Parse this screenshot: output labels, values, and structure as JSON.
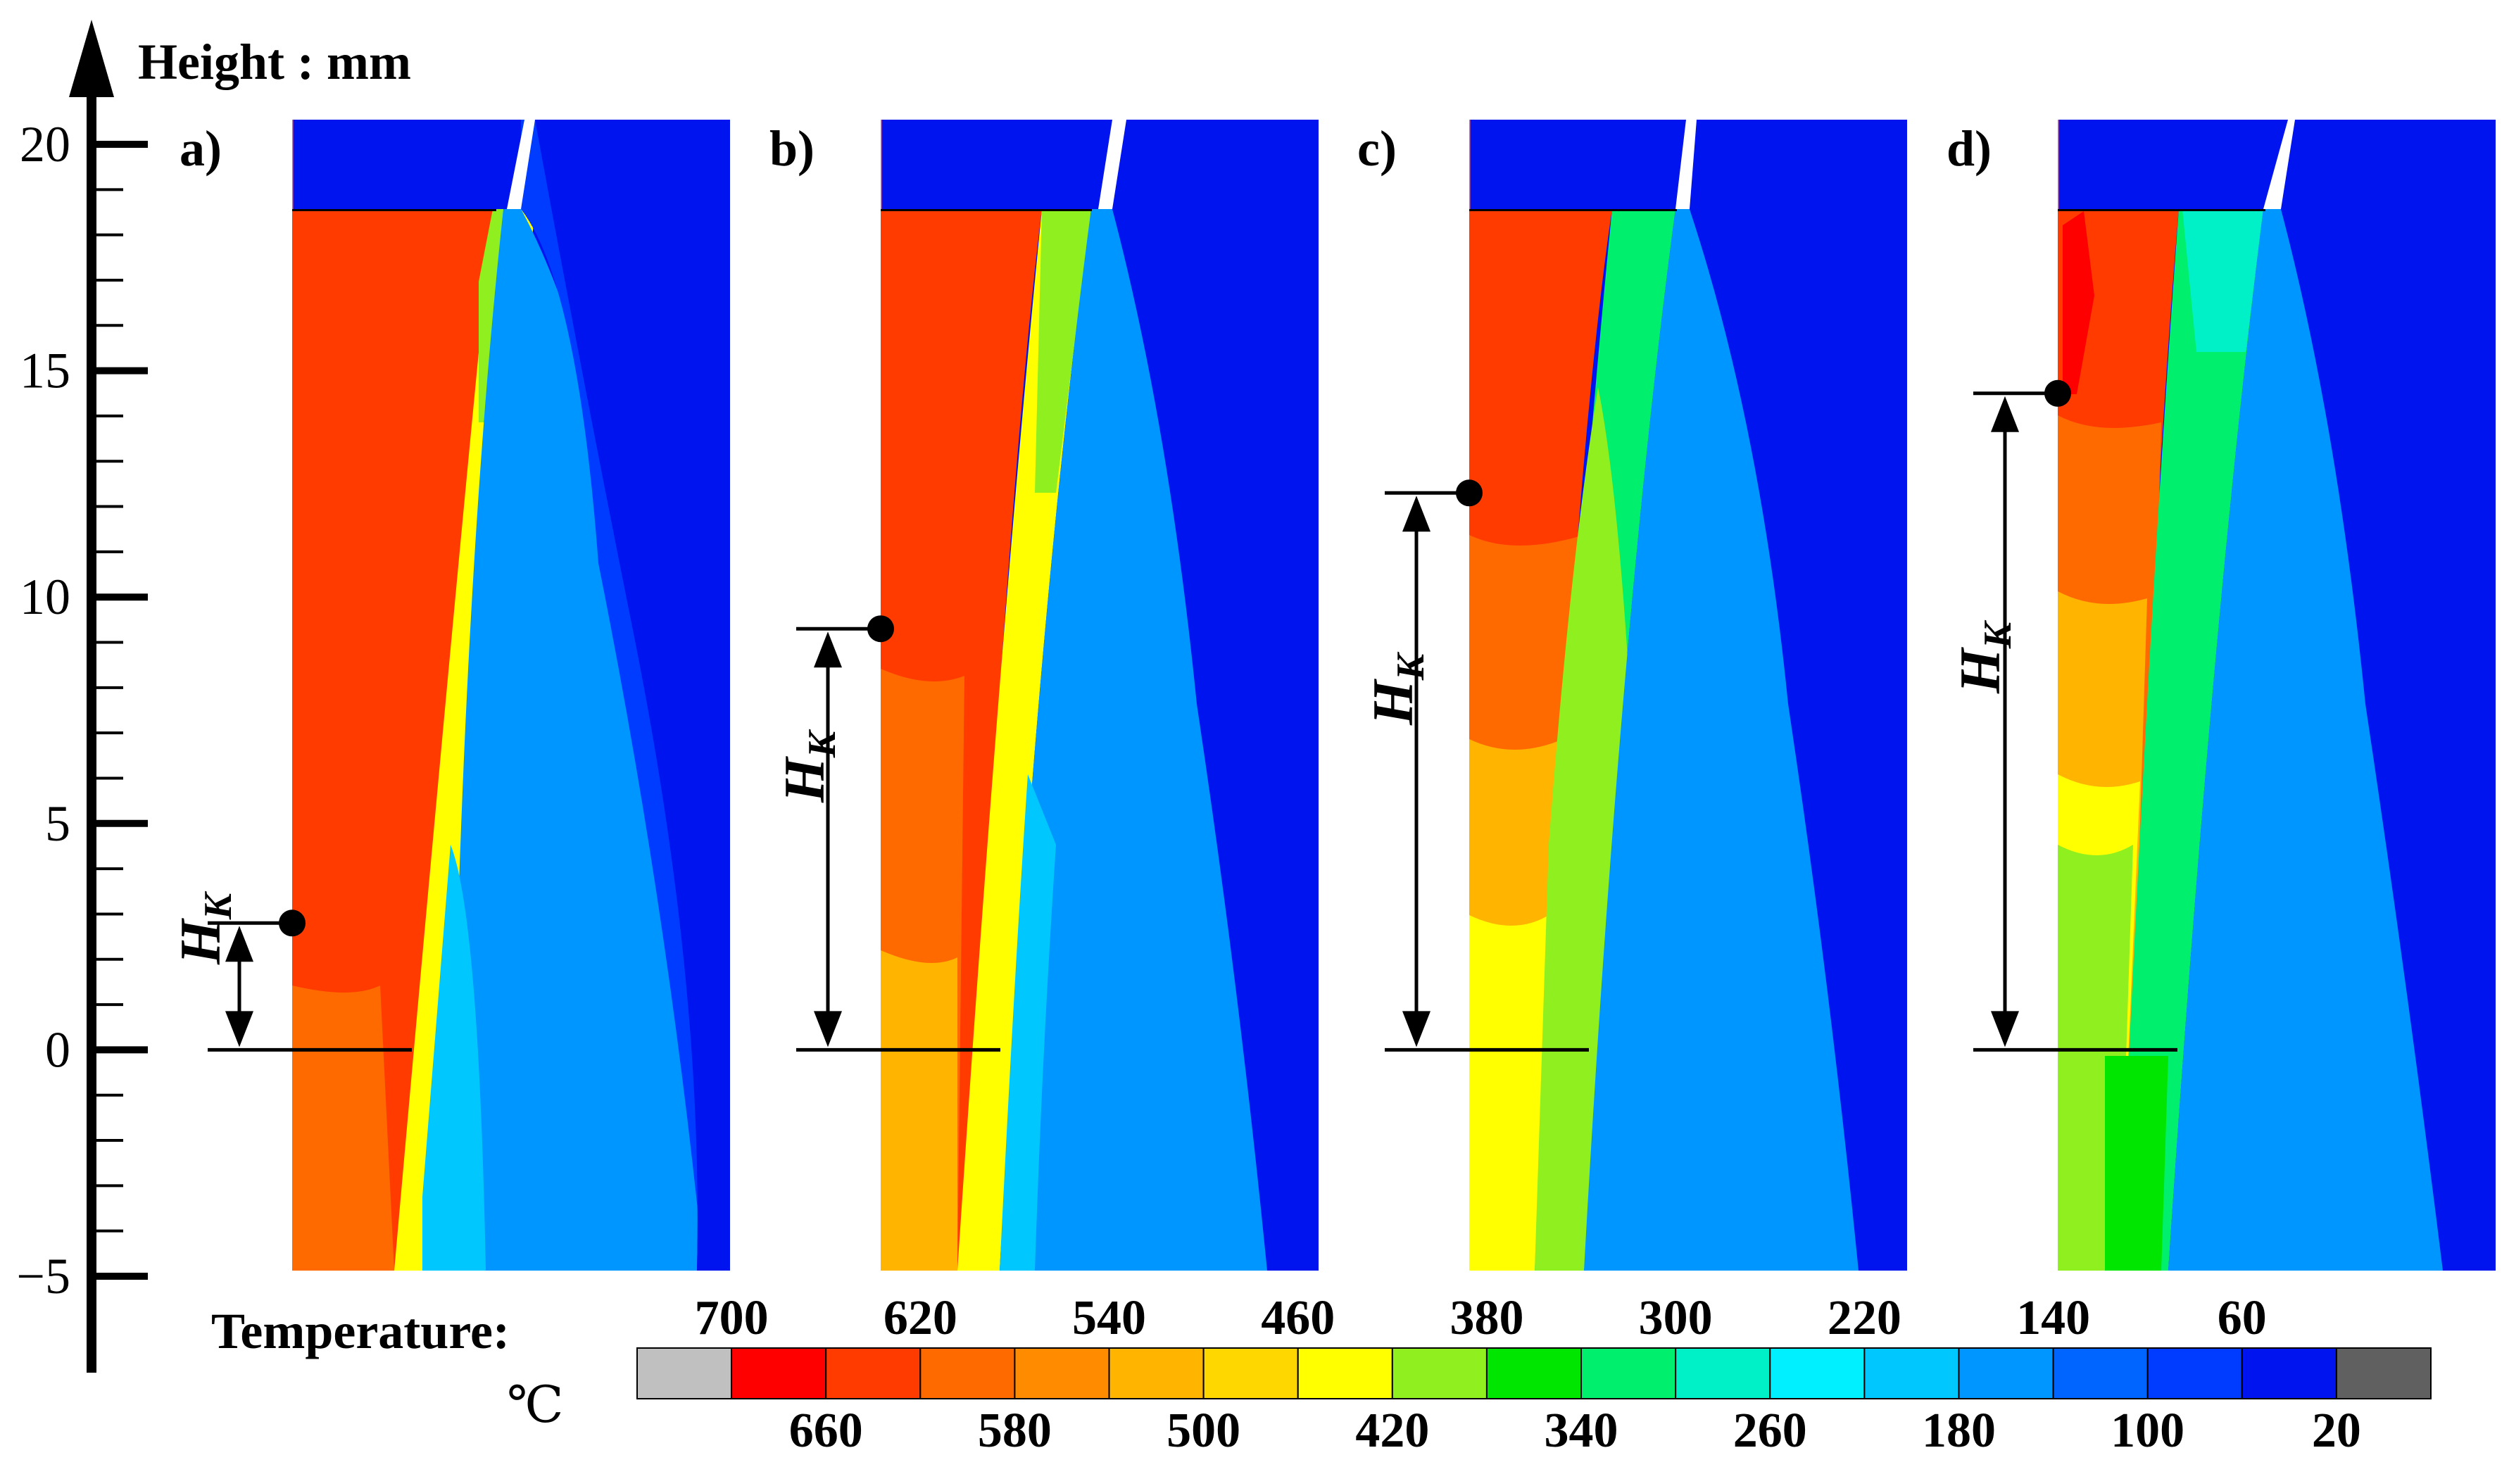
{
  "axis": {
    "title": "Height : mm",
    "ticks": [
      "20",
      "15",
      "10",
      "5",
      "0",
      "−5"
    ]
  },
  "panels": [
    {
      "label": "a)",
      "hk_label": "H",
      "hk_sub": "K",
      "hk_value_mm": 2.8
    },
    {
      "label": "b)",
      "hk_label": "H",
      "hk_sub": "K",
      "hk_value_mm": 9.3
    },
    {
      "label": "c)",
      "hk_label": "H",
      "hk_sub": "K",
      "hk_value_mm": 12.3
    },
    {
      "label": "d)",
      "hk_label": "H",
      "hk_sub": "K",
      "hk_value_mm": 14.5
    }
  ],
  "legend": {
    "title": "Temperature:",
    "unit": "℃",
    "top_labels": [
      "700",
      "620",
      "540",
      "460",
      "380",
      "300",
      "220",
      "140",
      "60"
    ],
    "bottom_labels": [
      "660",
      "580",
      "500",
      "420",
      "340",
      "260",
      "180",
      "100",
      "20"
    ],
    "colors": [
      "#c0c0c0",
      "#ff0000",
      "#ff3b00",
      "#ff6a00",
      "#ff8c00",
      "#ffb400",
      "#ffd700",
      "#ffff00",
      "#8fef1f",
      "#00e600",
      "#00ef6c",
      "#00f0c8",
      "#00f0ff",
      "#00c8ff",
      "#0096ff",
      "#0064ff",
      "#003cff",
      "#0014f0",
      "#606060"
    ]
  }
}
